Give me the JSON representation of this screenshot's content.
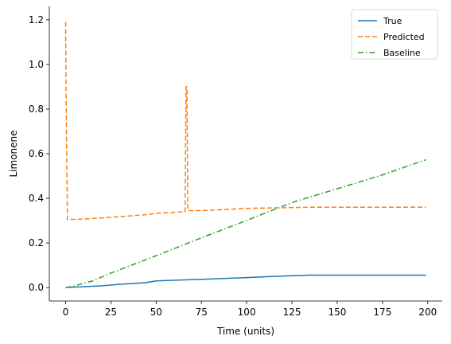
{
  "chart_data": {
    "type": "line",
    "title": "",
    "xlabel": "Time (units)",
    "ylabel": "Limonene",
    "xlim": [
      -9,
      208
    ],
    "ylim": [
      -0.06,
      1.26
    ],
    "xticks": [
      0,
      25,
      50,
      75,
      100,
      125,
      150,
      175,
      200
    ],
    "yticks": [
      0.0,
      0.2,
      0.4,
      0.6,
      0.8,
      1.0,
      1.2
    ],
    "xtick_labels": [
      "0",
      "25",
      "50",
      "75",
      "100",
      "125",
      "150",
      "175",
      "200"
    ],
    "ytick_labels": [
      "0.0",
      "0.2",
      "0.4",
      "0.6",
      "0.8",
      "1.0",
      "1.2"
    ],
    "grid": false,
    "legend_position": "top-right",
    "series": [
      {
        "name": "True",
        "color": "#1f77b4",
        "style": "solid",
        "x": [
          0,
          10,
          20,
          30,
          44,
          50,
          75,
          100,
          115,
          135,
          150,
          175,
          199
        ],
        "y": [
          0.0,
          0.004,
          0.008,
          0.015,
          0.022,
          0.03,
          0.037,
          0.045,
          0.05,
          0.056,
          0.056,
          0.056,
          0.056
        ]
      },
      {
        "name": "Predicted",
        "color": "#ff7f0e",
        "style": "dashed",
        "x": [
          0,
          0.2,
          1,
          10,
          25,
          45,
          50,
          66,
          66.5,
          67,
          67.5,
          68,
          75,
          100,
          135,
          150,
          199
        ],
        "y": [
          1.19,
          0.92,
          0.305,
          0.307,
          0.315,
          0.327,
          0.333,
          0.34,
          0.9,
          0.9,
          0.345,
          0.345,
          0.345,
          0.355,
          0.36,
          0.36,
          0.36
        ]
      },
      {
        "name": "Baseline",
        "color": "#2ca02c",
        "style": "dashdot",
        "x": [
          0,
          5,
          15,
          25,
          50,
          75,
          100,
          125,
          150,
          175,
          199
        ],
        "y": [
          0.0,
          0.008,
          0.03,
          0.065,
          0.143,
          0.223,
          0.301,
          0.381,
          0.443,
          0.505,
          0.573
        ]
      }
    ]
  }
}
